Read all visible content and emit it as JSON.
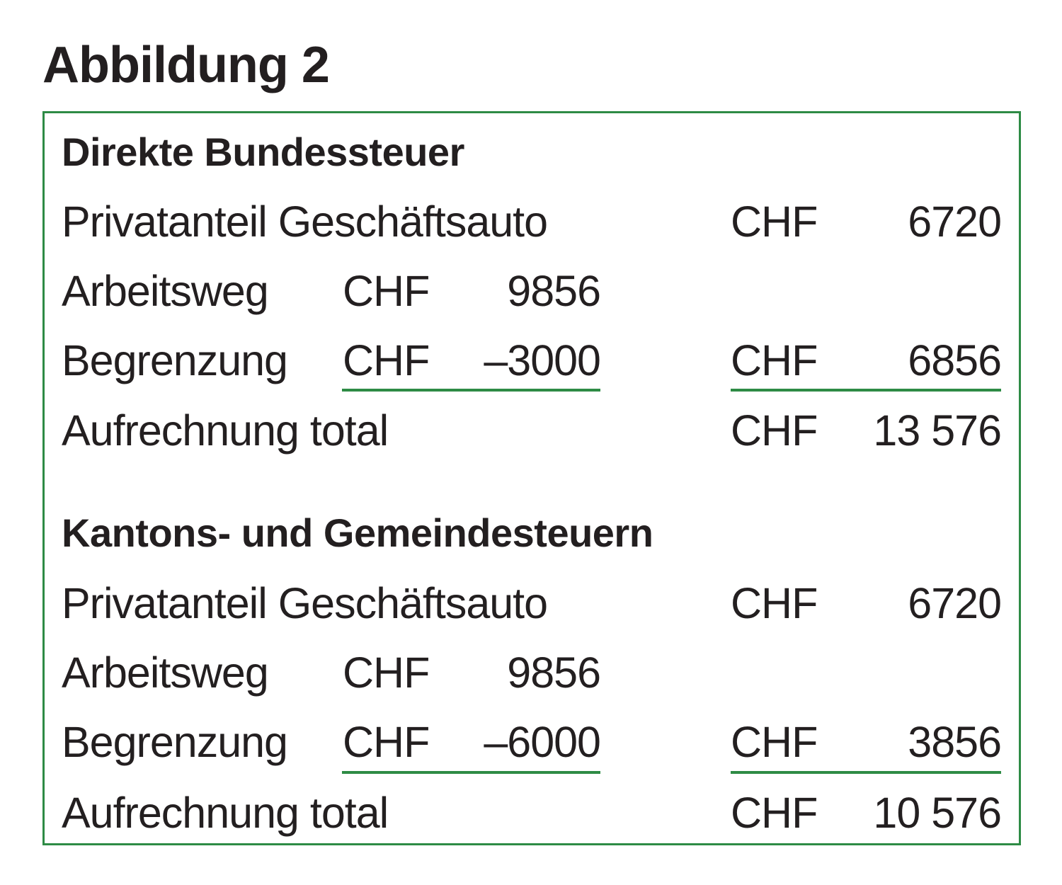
{
  "figure": {
    "title": "Abbildung 2"
  },
  "sections": [
    {
      "heading": "Direkte Bundessteuer",
      "rows": [
        {
          "label": "Privatanteil Geschäftsauto",
          "right_currency": "CHF",
          "right_amount": "6720"
        },
        {
          "label": "Arbeitsweg",
          "mid_currency": "CHF",
          "mid_amount": "9856"
        },
        {
          "label": "Begrenzung",
          "mid_currency": "CHF",
          "mid_amount": "–3000",
          "right_currency": "CHF",
          "right_amount": "6856"
        },
        {
          "label": "Aufrechnung total",
          "right_currency": "CHF",
          "right_amount": "13 576"
        }
      ]
    },
    {
      "heading": "Kantons- und Gemeindesteuern",
      "rows": [
        {
          "label": "Privatanteil Geschäftsauto",
          "right_currency": "CHF",
          "right_amount": "6720"
        },
        {
          "label": "Arbeitsweg",
          "mid_currency": "CHF",
          "mid_amount": "9856"
        },
        {
          "label": "Begrenzung",
          "mid_currency": "CHF",
          "mid_amount": "–6000",
          "right_currency": "CHF",
          "right_amount": "3856"
        },
        {
          "label": "Aufrechnung total",
          "right_currency": "CHF",
          "right_amount": "10 576"
        }
      ]
    }
  ],
  "colors": {
    "accent_green": "#2e8b45",
    "text": "#231f20"
  }
}
